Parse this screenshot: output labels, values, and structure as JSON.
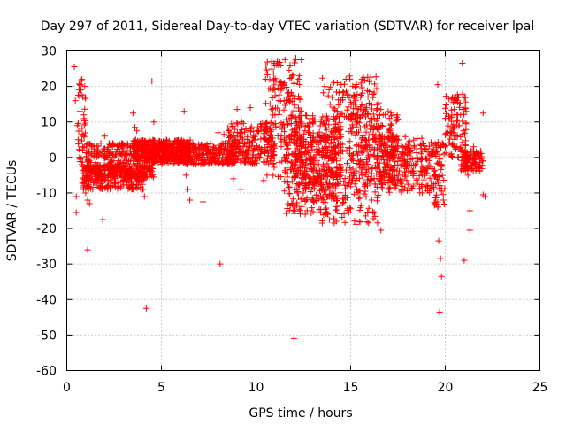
{
  "chart_data": {
    "type": "scatter",
    "title": "Day 297 of 2011, Sidereal Day-to-day VTEC variation (SDTVAR) for receiver lpal",
    "xlabel": "GPS time / hours",
    "ylabel": "SDTVAR / TECUs",
    "xlim": [
      0,
      25
    ],
    "ylim": [
      -60,
      30
    ],
    "xticks": [
      0,
      5,
      10,
      15,
      20,
      25
    ],
    "yticks": [
      -60,
      -50,
      -40,
      -30,
      -20,
      -10,
      0,
      10,
      20,
      30
    ],
    "xtick_labels": [
      "0",
      "5",
      "10",
      "15",
      "20",
      "25"
    ],
    "ytick_labels": [
      "-60",
      "-50",
      "-40",
      "-30",
      "-20",
      "-10",
      "0",
      "10",
      "20",
      "30"
    ],
    "grid": true,
    "marker": "+",
    "color": "#ff0000",
    "series": [
      {
        "name": "SDTVAR",
        "points": [
          [
            0.4,
            25.5
          ],
          [
            0.45,
            16
          ],
          [
            0.5,
            -11
          ],
          [
            0.5,
            -15.5
          ],
          [
            0.55,
            9
          ],
          [
            0.6,
            5
          ],
          [
            0.7,
            13
          ],
          [
            0.75,
            19
          ],
          [
            0.8,
            22
          ],
          [
            0.85,
            17
          ],
          [
            0.9,
            12
          ],
          [
            0.95,
            20
          ],
          [
            0.9,
            6
          ],
          [
            0.8,
            -2
          ],
          [
            0.9,
            -8
          ],
          [
            1.0,
            -10
          ],
          [
            1.1,
            -12
          ],
          [
            1.2,
            -13
          ],
          [
            1.1,
            -26
          ],
          [
            1.3,
            -4
          ],
          [
            1.5,
            -5
          ],
          [
            1.8,
            4
          ],
          [
            1.9,
            -17.5
          ],
          [
            2.0,
            6
          ],
          [
            2.5,
            -5
          ],
          [
            3.0,
            -7
          ],
          [
            3.5,
            -9
          ],
          [
            3.5,
            12.5
          ],
          [
            3.6,
            8.5
          ],
          [
            3.7,
            7.5
          ],
          [
            4.0,
            -9
          ],
          [
            4.1,
            -11
          ],
          [
            4.2,
            -42.5
          ],
          [
            4.5,
            21.5
          ],
          [
            4.6,
            10
          ],
          [
            4.5,
            -4
          ],
          [
            5.0,
            3
          ],
          [
            5.5,
            2
          ],
          [
            6.0,
            1
          ],
          [
            6.2,
            13
          ],
          [
            6.3,
            -5
          ],
          [
            6.4,
            -9
          ],
          [
            6.5,
            -12
          ],
          [
            7.0,
            2
          ],
          [
            7.2,
            -12.5
          ],
          [
            7.5,
            1
          ],
          [
            8.0,
            7
          ],
          [
            8.1,
            -30
          ],
          [
            8.3,
            6.5
          ],
          [
            8.5,
            0
          ],
          [
            8.7,
            6
          ],
          [
            8.8,
            -6
          ],
          [
            9.0,
            13.5
          ],
          [
            9.2,
            -9
          ],
          [
            9.5,
            3
          ],
          [
            9.7,
            14
          ],
          [
            10.0,
            5
          ],
          [
            10.4,
            -6.5
          ],
          [
            10.5,
            8
          ],
          [
            11.0,
            12
          ],
          [
            11.2,
            16
          ],
          [
            11.5,
            21
          ],
          [
            11.8,
            26
          ],
          [
            12.0,
            -51
          ],
          [
            12.1,
            28
          ],
          [
            12.2,
            5
          ],
          [
            12.5,
            -10
          ],
          [
            12.6,
            -16
          ],
          [
            13.0,
            10
          ],
          [
            13.5,
            -18.5
          ],
          [
            13.8,
            -16
          ],
          [
            14.0,
            -10
          ],
          [
            14.5,
            20.5
          ],
          [
            14.8,
            -8
          ],
          [
            15.0,
            8
          ],
          [
            15.3,
            20
          ],
          [
            15.6,
            22
          ],
          [
            16.0,
            10
          ],
          [
            16.3,
            -7.5
          ],
          [
            16.5,
            12
          ],
          [
            16.6,
            -20.5
          ],
          [
            17.0,
            -9
          ],
          [
            17.5,
            3
          ],
          [
            18.0,
            -2
          ],
          [
            18.5,
            -6
          ],
          [
            19.0,
            -3
          ],
          [
            19.4,
            -9
          ],
          [
            19.6,
            20.5
          ],
          [
            19.65,
            -23.5
          ],
          [
            19.7,
            -43.5
          ],
          [
            19.75,
            -28.5
          ],
          [
            19.8,
            -33.5
          ],
          [
            19.9,
            -12
          ],
          [
            20.0,
            3
          ],
          [
            20.3,
            6
          ],
          [
            20.5,
            12
          ],
          [
            20.7,
            17
          ],
          [
            20.9,
            26.5
          ],
          [
            21.0,
            -29
          ],
          [
            21.1,
            13
          ],
          [
            21.2,
            -5
          ],
          [
            21.3,
            -15
          ],
          [
            21.3,
            -20.5
          ],
          [
            21.5,
            3
          ],
          [
            22.0,
            12.5
          ],
          [
            22.0,
            -10.5
          ],
          [
            22.1,
            -11
          ]
        ],
        "bands": [
          {
            "x": [
              0.6,
              1.0
            ],
            "y": [
              -4,
              22
            ]
          },
          {
            "x": [
              0.8,
              4.2
            ],
            "y": [
              -9,
              -2
            ]
          },
          {
            "x": [
              1.0,
              4.6
            ],
            "y": [
              -6,
              4
            ]
          },
          {
            "x": [
              3.5,
              6.6
            ],
            "y": [
              -1,
              5
            ]
          },
          {
            "x": [
              4.5,
              9.0
            ],
            "y": [
              -2,
              4
            ]
          },
          {
            "x": [
              8.5,
              11.0
            ],
            "y": [
              -2,
              10
            ]
          },
          {
            "x": [
              10.5,
              12.4
            ],
            "y": [
              -6,
              28
            ]
          },
          {
            "x": [
              11.5,
              14.5
            ],
            "y": [
              -16,
              6
            ]
          },
          {
            "x": [
              12.0,
              14.5
            ],
            "y": [
              -8,
              12
            ]
          },
          {
            "x": [
              13.5,
              16.5
            ],
            "y": [
              -19,
              23
            ]
          },
          {
            "x": [
              15.0,
              17.5
            ],
            "y": [
              -8,
              14
            ]
          },
          {
            "x": [
              16.5,
              19.5
            ],
            "y": [
              -10,
              6
            ]
          },
          {
            "x": [
              19.4,
              20.0
            ],
            "y": [
              -14,
              5
            ]
          },
          {
            "x": [
              20.0,
              21.1
            ],
            "y": [
              0,
              18
            ]
          },
          {
            "x": [
              20.8,
              22.0
            ],
            "y": [
              -4,
              2
            ]
          }
        ]
      }
    ]
  }
}
